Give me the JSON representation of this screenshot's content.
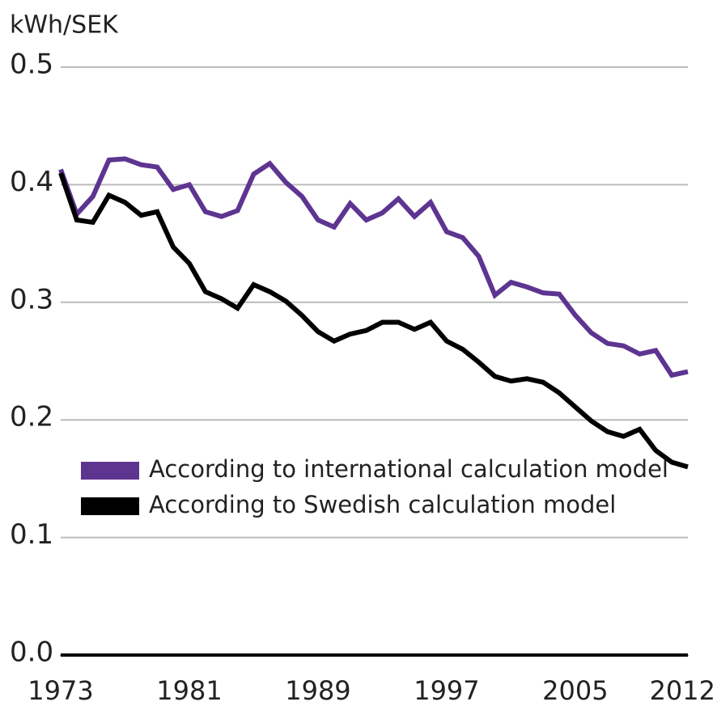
{
  "chart_data": {
    "type": "line",
    "y_label": "kWh/SEK",
    "x": [
      1973,
      1974,
      1975,
      1976,
      1977,
      1978,
      1979,
      1980,
      1981,
      1982,
      1983,
      1984,
      1985,
      1986,
      1987,
      1988,
      1989,
      1990,
      1991,
      1992,
      1993,
      1994,
      1995,
      1996,
      1997,
      1998,
      1999,
      2000,
      2001,
      2002,
      2003,
      2004,
      2005,
      2006,
      2007,
      2008,
      2009,
      2010,
      2011,
      2012
    ],
    "series": [
      {
        "name": "According to international calculation model",
        "color": "#5e3491",
        "values": [
          0.413,
          0.375,
          0.39,
          0.421,
          0.422,
          0.417,
          0.415,
          0.396,
          0.4,
          0.377,
          0.373,
          0.378,
          0.409,
          0.418,
          0.402,
          0.39,
          0.37,
          0.364,
          0.384,
          0.37,
          0.376,
          0.388,
          0.373,
          0.385,
          0.36,
          0.355,
          0.339,
          0.306,
          0.317,
          0.313,
          0.308,
          0.307,
          0.289,
          0.274,
          0.265,
          0.263,
          0.256,
          0.259,
          0.238,
          0.241
        ]
      },
      {
        "name": "According to Swedish calculation model",
        "color": "#000000",
        "values": [
          0.41,
          0.37,
          0.368,
          0.391,
          0.385,
          0.374,
          0.377,
          0.347,
          0.333,
          0.309,
          0.303,
          0.295,
          0.315,
          0.309,
          0.301,
          0.289,
          0.275,
          0.267,
          0.273,
          0.276,
          0.283,
          0.283,
          0.277,
          0.283,
          0.267,
          0.26,
          0.249,
          0.237,
          0.233,
          0.235,
          0.232,
          0.223,
          0.211,
          0.199,
          0.19,
          0.186,
          0.192,
          0.174,
          0.164,
          0.16
        ]
      }
    ],
    "xlim": [
      1973,
      2012
    ],
    "xticks": [
      1973,
      1981,
      1989,
      1997,
      2005,
      2012
    ],
    "ylim": [
      0,
      0.5
    ],
    "yticks": [
      {
        "value": 0,
        "label": "0.0"
      },
      0.1,
      0.2,
      0.3,
      0.4,
      0.5
    ],
    "grid": true,
    "legend": "center-left"
  }
}
